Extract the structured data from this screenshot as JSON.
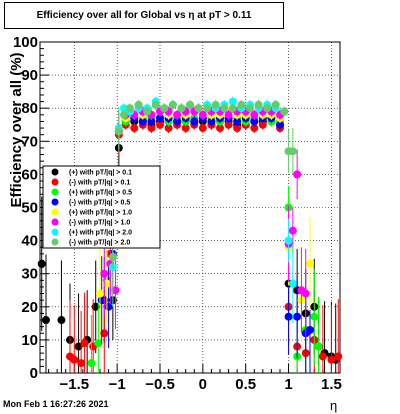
{
  "title": "Efficiency over all for Global vs   η at pT > 0.11",
  "timestamp": "Mon Feb  1 16:27:26 2021",
  "chart_data": {
    "type": "scatter",
    "title": "Efficiency over all for Global vs   η at pT > 0.11",
    "xlabel": "η",
    "ylabel": "Efficiency over all (%)",
    "xlim": [
      -1.9,
      1.6
    ],
    "ylim": [
      0,
      100
    ],
    "xticks": [
      -1.5,
      -1,
      -0.5,
      0,
      0.5,
      1,
      1.5
    ],
    "xtick_labels": [
      "−1.5",
      "−1",
      "−0.5",
      "0",
      "0.5",
      "1",
      "1.5"
    ],
    "yticks": [
      0,
      10,
      20,
      30,
      40,
      50,
      60,
      70,
      80,
      90,
      100
    ],
    "ytick_labels": [
      "0",
      "10",
      "20",
      "30",
      "40",
      "50",
      "60",
      "70",
      "80",
      "90",
      "100"
    ],
    "grid": true,
    "legend_position": "center-left",
    "series": [
      {
        "name": "(+) with pT/|q| > 0.1",
        "color": "#000000",
        "points": [
          [
            -1.88,
            33
          ],
          [
            -1.83,
            16
          ],
          [
            -1.65,
            16
          ],
          [
            -1.55,
            10
          ],
          [
            -1.45,
            8
          ],
          [
            -1.35,
            10
          ],
          [
            -1.25,
            20
          ],
          [
            -1.15,
            22
          ],
          [
            -1.05,
            22
          ],
          [
            -0.98,
            68
          ],
          [
            -0.9,
            76
          ],
          [
            -0.8,
            76
          ],
          [
            -0.7,
            76
          ],
          [
            -0.6,
            75
          ],
          [
            -0.5,
            76
          ],
          [
            -0.4,
            76
          ],
          [
            -0.3,
            76
          ],
          [
            -0.2,
            76
          ],
          [
            -0.1,
            76
          ],
          [
            0.0,
            76
          ],
          [
            0.1,
            75
          ],
          [
            0.2,
            76
          ],
          [
            0.3,
            76
          ],
          [
            0.4,
            75
          ],
          [
            0.5,
            75
          ],
          [
            0.6,
            76
          ],
          [
            0.7,
            76
          ],
          [
            0.8,
            76
          ],
          [
            0.9,
            75
          ],
          [
            1.0,
            27
          ],
          [
            1.1,
            25
          ],
          [
            1.2,
            18
          ],
          [
            1.3,
            20
          ],
          [
            1.35,
            8
          ],
          [
            1.42,
            6
          ],
          [
            1.5,
            5
          ],
          [
            1.55,
            4
          ]
        ]
      },
      {
        "name": "(-) with pT/|q| > 0.1",
        "color": "#ff0000",
        "points": [
          [
            -1.55,
            5
          ],
          [
            -1.5,
            4
          ],
          [
            -1.42,
            3
          ],
          [
            -1.38,
            9
          ],
          [
            -1.28,
            8
          ],
          [
            -1.15,
            12
          ],
          [
            -1.08,
            36
          ],
          [
            -0.98,
            72
          ],
          [
            -0.9,
            75
          ],
          [
            -0.8,
            74
          ],
          [
            -0.7,
            75
          ],
          [
            -0.6,
            74
          ],
          [
            -0.5,
            75
          ],
          [
            -0.4,
            74
          ],
          [
            -0.3,
            75
          ],
          [
            -0.2,
            74
          ],
          [
            -0.1,
            75
          ],
          [
            0.0,
            74
          ],
          [
            0.1,
            75
          ],
          [
            0.2,
            74
          ],
          [
            0.3,
            75
          ],
          [
            0.4,
            74
          ],
          [
            0.5,
            75
          ],
          [
            0.6,
            74
          ],
          [
            0.7,
            75
          ],
          [
            0.8,
            76
          ],
          [
            0.9,
            74
          ],
          [
            1.0,
            20
          ],
          [
            1.1,
            8
          ],
          [
            1.2,
            6
          ],
          [
            1.3,
            10
          ],
          [
            1.4,
            5
          ],
          [
            1.5,
            4
          ],
          [
            1.58,
            5
          ]
        ]
      },
      {
        "name": "(+) with pT/|q| > 0.5",
        "color": "#00ff00",
        "points": [
          [
            -1.3,
            3
          ],
          [
            -1.22,
            9
          ],
          [
            -1.12,
            28
          ],
          [
            -1.05,
            40
          ],
          [
            -0.98,
            74
          ],
          [
            -0.9,
            76
          ],
          [
            -0.8,
            77
          ],
          [
            -0.7,
            77
          ],
          [
            -0.6,
            77
          ],
          [
            -0.5,
            77
          ],
          [
            -0.4,
            76
          ],
          [
            -0.3,
            77
          ],
          [
            -0.2,
            76
          ],
          [
            -0.1,
            77
          ],
          [
            0.0,
            77
          ],
          [
            0.1,
            77
          ],
          [
            0.2,
            76
          ],
          [
            0.3,
            77
          ],
          [
            0.4,
            77
          ],
          [
            0.5,
            76
          ],
          [
            0.6,
            77
          ],
          [
            0.7,
            77
          ],
          [
            0.8,
            76
          ],
          [
            0.9,
            76
          ],
          [
            1.0,
            50
          ],
          [
            1.1,
            5
          ],
          [
            1.2,
            13
          ],
          [
            1.3,
            17
          ],
          [
            1.35,
            8
          ]
        ]
      },
      {
        "name": "(-) with pT/|q| > 0.5",
        "color": "#0000ff",
        "points": [
          [
            -1.18,
            22
          ],
          [
            -1.1,
            20
          ],
          [
            -1.05,
            36
          ],
          [
            -0.98,
            73
          ],
          [
            -0.9,
            77
          ],
          [
            -0.8,
            77
          ],
          [
            -0.7,
            76
          ],
          [
            -0.6,
            76
          ],
          [
            -0.5,
            77
          ],
          [
            -0.4,
            77
          ],
          [
            -0.3,
            76
          ],
          [
            -0.2,
            77
          ],
          [
            -0.1,
            76
          ],
          [
            0.0,
            77
          ],
          [
            0.1,
            76
          ],
          [
            0.2,
            77
          ],
          [
            0.3,
            77
          ],
          [
            0.4,
            76
          ],
          [
            0.5,
            77
          ],
          [
            0.6,
            76
          ],
          [
            0.7,
            77
          ],
          [
            0.8,
            77
          ],
          [
            0.9,
            75
          ],
          [
            1.0,
            17
          ],
          [
            1.1,
            17
          ],
          [
            1.2,
            12
          ],
          [
            1.25,
            13
          ]
        ]
      },
      {
        "name": "(+) with pT/|q| > 1.0",
        "color": "#ffff00",
        "points": [
          [
            -1.2,
            24
          ],
          [
            -1.12,
            27
          ],
          [
            -1.05,
            35
          ],
          [
            -0.98,
            74
          ],
          [
            -0.9,
            77
          ],
          [
            -0.8,
            78
          ],
          [
            -0.7,
            78
          ],
          [
            -0.6,
            78
          ],
          [
            -0.5,
            79
          ],
          [
            -0.4,
            78
          ],
          [
            -0.3,
            78
          ],
          [
            -0.2,
            78
          ],
          [
            -0.1,
            79
          ],
          [
            0.0,
            78
          ],
          [
            0.1,
            78
          ],
          [
            0.2,
            78
          ],
          [
            0.3,
            79
          ],
          [
            0.4,
            78
          ],
          [
            0.5,
            78
          ],
          [
            0.6,
            78
          ],
          [
            0.7,
            78
          ],
          [
            0.8,
            78
          ],
          [
            0.9,
            77
          ],
          [
            1.0,
            38
          ],
          [
            1.15,
            22
          ],
          [
            1.25,
            33
          ]
        ]
      },
      {
        "name": "(-) with pT/|q| > 1.0",
        "color": "#ff00ff",
        "points": [
          [
            -1.15,
            30
          ],
          [
            -1.08,
            33
          ],
          [
            -1.02,
            25
          ],
          [
            -0.98,
            73
          ],
          [
            -0.9,
            78
          ],
          [
            -0.8,
            78
          ],
          [
            -0.7,
            79
          ],
          [
            -0.6,
            78
          ],
          [
            -0.5,
            79
          ],
          [
            -0.4,
            79
          ],
          [
            -0.3,
            78
          ],
          [
            -0.2,
            79
          ],
          [
            -0.1,
            79
          ],
          [
            0.0,
            78
          ],
          [
            0.1,
            79
          ],
          [
            0.2,
            79
          ],
          [
            0.3,
            78
          ],
          [
            0.4,
            79
          ],
          [
            0.5,
            79
          ],
          [
            0.6,
            78
          ],
          [
            0.7,
            79
          ],
          [
            0.8,
            79
          ],
          [
            0.9,
            78
          ],
          [
            1.0,
            39
          ],
          [
            1.05,
            43
          ],
          [
            1.1,
            60
          ],
          [
            1.15,
            25
          ],
          [
            1.2,
            24
          ]
        ]
      },
      {
        "name": "(+) with pT/|q| > 2.0",
        "color": "#00ffff",
        "points": [
          [
            -1.05,
            32
          ],
          [
            -0.98,
            74
          ],
          [
            -0.92,
            80
          ],
          [
            -0.85,
            79
          ],
          [
            -0.75,
            80
          ],
          [
            -0.65,
            80
          ],
          [
            -0.55,
            82
          ],
          [
            -0.45,
            80
          ],
          [
            -0.35,
            81
          ],
          [
            -0.25,
            80
          ],
          [
            -0.15,
            81
          ],
          [
            -0.05,
            80
          ],
          [
            0.05,
            81
          ],
          [
            0.15,
            80
          ],
          [
            0.25,
            81
          ],
          [
            0.35,
            82
          ],
          [
            0.45,
            80
          ],
          [
            0.55,
            81
          ],
          [
            0.65,
            80
          ],
          [
            0.75,
            81
          ],
          [
            0.85,
            80
          ],
          [
            0.95,
            79
          ],
          [
            1.0,
            40
          ],
          [
            1.05,
            27
          ]
        ]
      },
      {
        "name": "(-) with pT/|q| > 2.0",
        "color": "#66cc66",
        "points": [
          [
            -1.05,
            35
          ],
          [
            -0.98,
            73
          ],
          [
            -0.92,
            78
          ],
          [
            -0.85,
            80
          ],
          [
            -0.75,
            81
          ],
          [
            -0.65,
            79
          ],
          [
            -0.55,
            81
          ],
          [
            -0.45,
            80
          ],
          [
            -0.35,
            81
          ],
          [
            -0.25,
            80
          ],
          [
            -0.15,
            81
          ],
          [
            -0.05,
            80
          ],
          [
            0.05,
            80
          ],
          [
            0.15,
            81
          ],
          [
            0.25,
            80
          ],
          [
            0.35,
            80
          ],
          [
            0.45,
            81
          ],
          [
            0.55,
            80
          ],
          [
            0.65,
            81
          ],
          [
            0.75,
            80
          ],
          [
            0.85,
            81
          ],
          [
            0.95,
            79
          ],
          [
            1.0,
            67
          ],
          [
            1.05,
            67
          ]
        ]
      }
    ]
  }
}
